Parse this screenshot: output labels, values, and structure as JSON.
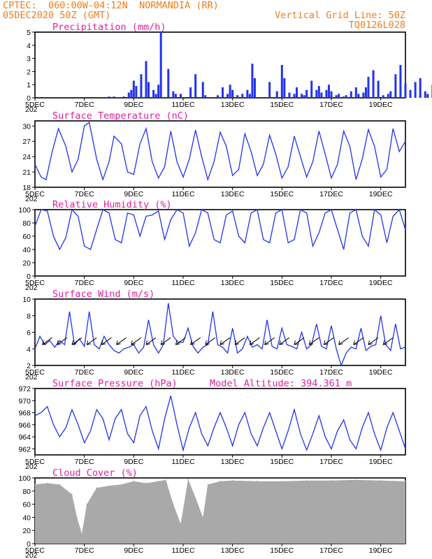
{
  "header": {
    "line1": "CPTEC:  060:00W-04:12N  NORMANDIA (RR)",
    "line2": "05DEC2020 50Z (GMT)",
    "vgrid": "Vertical Grid Line: 50Z",
    "code": "TQ0126L028"
  },
  "colors": {
    "header": "#f07c1c",
    "title": "#e0209c",
    "series": "#2233ee",
    "cloud": "#a9a9a9",
    "arrow": "#000000"
  },
  "x_ticks": [
    "5DEC",
    "7DEC",
    "9DEC",
    "11DEC",
    "13DEC",
    "15DEC",
    "17DEC",
    "19DEC"
  ],
  "x_sublabel": "202",
  "chart_data": [
    {
      "type": "bar",
      "title": "Precipitation (mm/h)",
      "ylim": [
        0,
        5
      ],
      "yticks": [
        "0",
        "1",
        "2",
        "3",
        "4",
        "5"
      ],
      "x": [
        3.0,
        3.2,
        3.4,
        3.6,
        3.8,
        3.9,
        4.0,
        4.1,
        4.3,
        4.5,
        4.6,
        4.8,
        4.9,
        5.0,
        5.1,
        5.4,
        5.6,
        5.7,
        5.9,
        6.3,
        6.5,
        6.8,
        6.9,
        7.4,
        7.6,
        7.8,
        7.9,
        8.0,
        8.2,
        8.4,
        8.6,
        8.7,
        8.8,
        8.9,
        9.5,
        9.8,
        10.0,
        10.1,
        10.3,
        10.5,
        10.6,
        10.8,
        10.9,
        11.0,
        11.2,
        11.4,
        11.5,
        11.6,
        11.8,
        11.9,
        12.0,
        12.2,
        12.3,
        12.5,
        12.6,
        12.8,
        13.0,
        13.1,
        13.3,
        13.4,
        13.5,
        13.7,
        13.9,
        14.1,
        14.3,
        14.4,
        14.6,
        14.8,
        15.0,
        15.2,
        15.4,
        15.6,
        15.8,
        15.9,
        16.1,
        16.3,
        16.5,
        16.7,
        16.9,
        17.1,
        17.3,
        17.5,
        17.7,
        17.9,
        18.1,
        18.2,
        18.4,
        18.5,
        18.6,
        18.8,
        18.9,
        19.0
      ],
      "values": [
        0.1,
        0.1,
        0.05,
        0.1,
        0.4,
        0.6,
        1.3,
        0.9,
        1.8,
        2.8,
        1.2,
        0.6,
        0.3,
        1.0,
        5.0,
        2.2,
        0.5,
        0.3,
        0.3,
        0.8,
        1.8,
        1.2,
        0.2,
        0.2,
        0.8,
        0.3,
        1.0,
        0.6,
        0.2,
        0.3,
        0.6,
        0.3,
        2.6,
        1.5,
        1.2,
        0.5,
        2.5,
        1.5,
        0.4,
        0.3,
        0.8,
        0.3,
        0.2,
        0.6,
        1.3,
        0.6,
        0.9,
        0.4,
        0.6,
        1.0,
        0.5,
        0.2,
        0.3,
        0.1,
        0.2,
        0.5,
        0.8,
        0.3,
        0.4,
        0.8,
        1.6,
        2.1,
        1.3,
        0.2,
        0.3,
        0.5,
        1.8,
        2.5,
        1.1,
        0.6,
        1.2,
        1.5,
        0.5,
        0.3,
        1.0,
        1.6,
        2.6,
        0.4,
        0.9,
        0.3,
        0.2,
        0.4,
        1.6,
        1.9,
        0.3,
        0.5,
        0.8,
        1.5,
        1.0,
        0.3,
        0.1,
        2.4
      ]
    },
    {
      "type": "line",
      "title": "Surface Temperature (nC)",
      "ylim": [
        18,
        31
      ],
      "yticks": [
        "18",
        "21",
        "24",
        "27",
        "30"
      ],
      "x": [
        0,
        0.25,
        0.45,
        0.7,
        0.95,
        1.25,
        1.5,
        1.75,
        2.0,
        2.2,
        2.5,
        2.75,
        3.0,
        3.2,
        3.5,
        3.75,
        4.0,
        4.25,
        4.5,
        4.75,
        5.0,
        5.25,
        5.5,
        5.75,
        6.0,
        6.25,
        6.5,
        6.75,
        7.0,
        7.25,
        7.5,
        7.75,
        8.0,
        8.25,
        8.5,
        8.75,
        9.0,
        9.25,
        9.5,
        9.75,
        10.0,
        10.25,
        10.5,
        10.75,
        11.0,
        11.25,
        11.5,
        11.75,
        12.0,
        12.25,
        12.5,
        12.75,
        13.0,
        13.25,
        13.5,
        13.75,
        14.0,
        14.25,
        14.5,
        14.75,
        15.0
      ],
      "values": [
        22.5,
        20.0,
        19.5,
        25.0,
        29.5,
        26.0,
        21.0,
        23.5,
        30.0,
        30.7,
        23.5,
        19.5,
        23.0,
        28.0,
        26.5,
        21.0,
        20.5,
        26.5,
        29.5,
        23.0,
        19.8,
        22.0,
        29.0,
        23.0,
        20.0,
        23.5,
        29.2,
        24.0,
        19.5,
        23.0,
        28.8,
        26.0,
        20.3,
        21.5,
        28.5,
        25.0,
        20.3,
        22.5,
        28.2,
        24.5,
        19.8,
        22.0,
        28.0,
        24.0,
        20.0,
        23.0,
        29.0,
        24.5,
        19.8,
        22.5,
        29.0,
        26.0,
        19.5,
        23.5,
        29.3,
        26.0,
        20.0,
        21.5,
        29.5,
        25.0,
        27.0
      ]
    },
    {
      "type": "line",
      "title": "Relative Humidity (%)",
      "ylim": [
        0,
        100
      ],
      "yticks": [
        "0",
        "20",
        "40",
        "60",
        "80",
        "100"
      ],
      "x": [
        0,
        0.25,
        0.5,
        0.75,
        1.0,
        1.25,
        1.5,
        1.75,
        2.0,
        2.25,
        2.5,
        2.75,
        3.0,
        3.25,
        3.5,
        3.75,
        4.0,
        4.25,
        4.5,
        4.75,
        5.0,
        5.25,
        5.5,
        5.75,
        6.0,
        6.25,
        6.5,
        6.75,
        7.0,
        7.25,
        7.5,
        7.75,
        8.0,
        8.25,
        8.5,
        8.75,
        9.0,
        9.25,
        9.5,
        9.75,
        10.0,
        10.25,
        10.5,
        10.75,
        11.0,
        11.25,
        11.5,
        11.75,
        12.0,
        12.25,
        12.5,
        12.75,
        13.0,
        13.25,
        13.5,
        13.75,
        14.0,
        14.25,
        14.5,
        14.75,
        15.0
      ],
      "values": [
        75,
        100,
        98,
        60,
        40,
        58,
        100,
        90,
        45,
        40,
        70,
        100,
        95,
        55,
        50,
        95,
        92,
        60,
        90,
        92,
        98,
        55,
        85,
        100,
        95,
        45,
        65,
        100,
        95,
        55,
        50,
        92,
        98,
        60,
        50,
        95,
        100,
        55,
        50,
        95,
        100,
        50,
        55,
        100,
        95,
        45,
        65,
        95,
        100,
        70,
        40,
        95,
        100,
        60,
        45,
        100,
        92,
        50,
        90,
        100,
        70
      ]
    },
    {
      "type": "line",
      "title": "Surface Wind (m/s)",
      "ylim": [
        2,
        10
      ],
      "yticks": [
        "2",
        "4",
        "6",
        "8",
        "10"
      ],
      "x": [
        0,
        0.2,
        0.4,
        0.6,
        0.8,
        1.0,
        1.2,
        1.4,
        1.6,
        1.8,
        2.0,
        2.2,
        2.4,
        2.6,
        2.8,
        3.0,
        3.2,
        3.4,
        3.6,
        3.8,
        4.0,
        4.2,
        4.4,
        4.6,
        4.8,
        5.0,
        5.2,
        5.4,
        5.6,
        5.8,
        6.0,
        6.2,
        6.4,
        6.6,
        6.8,
        7.0,
        7.2,
        7.4,
        7.6,
        7.8,
        8.0,
        8.2,
        8.4,
        8.6,
        8.8,
        9.0,
        9.2,
        9.4,
        9.6,
        9.8,
        10.0,
        10.2,
        10.4,
        10.6,
        10.8,
        11.0,
        11.2,
        11.4,
        11.6,
        11.8,
        12.0,
        12.2,
        12.4,
        12.6,
        12.8,
        13.0,
        13.2,
        13.4,
        13.6,
        13.8,
        14.0,
        14.2,
        14.4,
        14.6,
        14.8,
        15.0
      ],
      "values": [
        4.0,
        5.5,
        4.5,
        5.0,
        4.2,
        5.0,
        4.5,
        8.5,
        4.5,
        5.2,
        4.3,
        8.5,
        4.5,
        4.0,
        5.5,
        4.5,
        3.8,
        3.5,
        4.0,
        4.2,
        4.5,
        3.5,
        4.2,
        7.5,
        4.5,
        3.5,
        4.5,
        9.5,
        5.5,
        4.8,
        4.8,
        6.5,
        4.3,
        3.5,
        4.2,
        4.5,
        8.5,
        4.5,
        4.2,
        3.5,
        6.5,
        3.5,
        4.0,
        5.5,
        4.2,
        4.5,
        4.0,
        7.5,
        4.3,
        4.0,
        6.5,
        4.5,
        4.3,
        4.0,
        6.0,
        4.0,
        4.5,
        7.0,
        4.3,
        4.0,
        6.8,
        4.0,
        2.0,
        3.5,
        4.2,
        4.0,
        6.5,
        3.8,
        4.3,
        4.5,
        8.0,
        4.5,
        3.8,
        7.0,
        4.0,
        4.2
      ]
    },
    {
      "type": "line",
      "title": "Surface Pressure (hPa)",
      "annotation": "Model Altitude: 394.361 m",
      "ylim": [
        961,
        972
      ],
      "yticks": [
        "962",
        "964",
        "966",
        "968",
        "970",
        "972"
      ],
      "x": [
        0,
        0.25,
        0.5,
        0.75,
        1.0,
        1.25,
        1.5,
        1.75,
        2.0,
        2.25,
        2.5,
        2.75,
        3.0,
        3.25,
        3.5,
        3.75,
        4.0,
        4.25,
        4.5,
        4.75,
        5.0,
        5.25,
        5.5,
        5.75,
        6.0,
        6.25,
        6.5,
        6.75,
        7.0,
        7.25,
        7.5,
        7.75,
        8.0,
        8.25,
        8.5,
        8.75,
        9.0,
        9.25,
        9.5,
        9.75,
        10.0,
        10.25,
        10.5,
        10.75,
        11.0,
        11.25,
        11.5,
        11.75,
        12.0,
        12.25,
        12.5,
        12.75,
        13.0,
        13.25,
        13.5,
        13.75,
        14.0,
        14.25,
        14.5,
        14.75,
        15.0
      ],
      "values": [
        967.5,
        968.0,
        969.0,
        966.0,
        964.0,
        965.5,
        968.5,
        966.0,
        963.0,
        965.0,
        968.5,
        967.0,
        963.5,
        967.0,
        968.5,
        964.5,
        963.0,
        967.5,
        969.0,
        965.0,
        962.0,
        967.0,
        970.8,
        966.0,
        961.8,
        965.5,
        968.0,
        964.5,
        962.5,
        965.5,
        968.0,
        965.5,
        962.5,
        966.0,
        968.0,
        964.5,
        962.5,
        965.5,
        968.0,
        965.0,
        962.0,
        965.0,
        968.5,
        964.5,
        961.8,
        964.5,
        967.5,
        964.0,
        962.0,
        965.0,
        966.8,
        963.5,
        962.0,
        965.5,
        968.0,
        964.5,
        961.8,
        965.5,
        968.0,
        965.0,
        962.0
      ]
    },
    {
      "type": "bar",
      "title": "Cloud Cover (%)",
      "ylim": [
        0,
        100
      ],
      "yticks": [
        "0",
        "20",
        "40",
        "60",
        "80",
        "100"
      ],
      "x": [
        0,
        0.5,
        1.0,
        1.5,
        1.7,
        1.9,
        2.1,
        2.5,
        3.0,
        3.5,
        4.0,
        4.5,
        5.0,
        5.3,
        5.6,
        5.9,
        6.2,
        6.5,
        6.8,
        7.0,
        7.5,
        8.0,
        9.0,
        10.0,
        11.0,
        12.0,
        13.0,
        14.0,
        15.0
      ],
      "values": [
        90,
        92,
        90,
        75,
        40,
        15,
        60,
        85,
        88,
        90,
        95,
        92,
        95,
        97,
        60,
        30,
        98,
        70,
        40,
        90,
        95,
        96,
        95,
        95,
        96,
        96,
        97,
        96,
        95
      ]
    }
  ]
}
